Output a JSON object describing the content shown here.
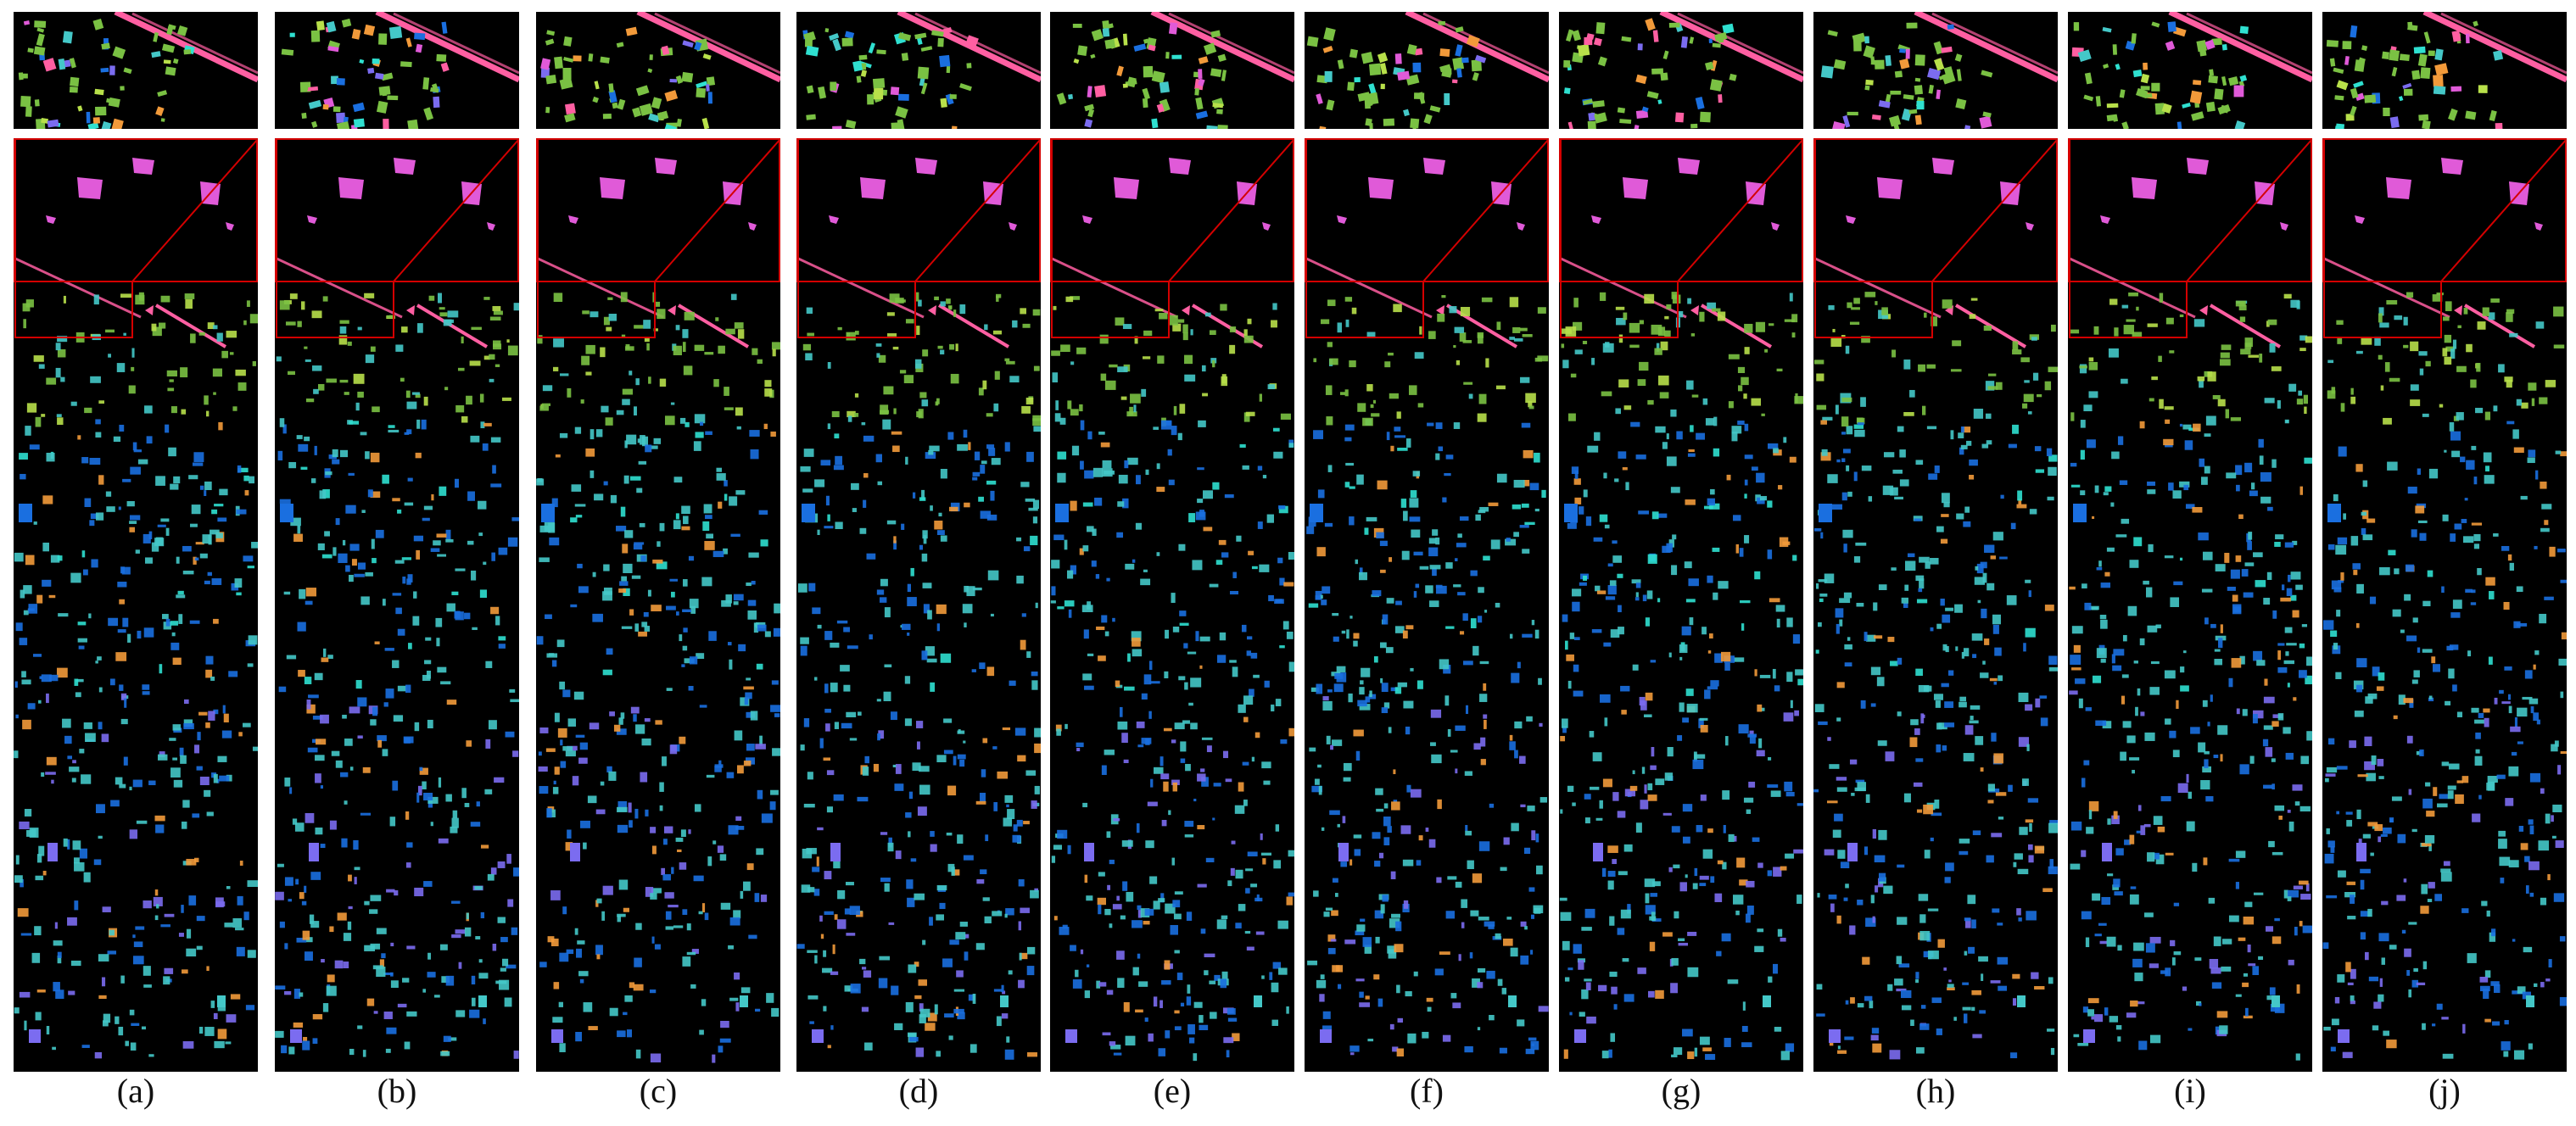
{
  "figure": {
    "panels": [
      {
        "label": "(a)"
      },
      {
        "label": "(b)"
      },
      {
        "label": "(c)"
      },
      {
        "label": "(d)"
      },
      {
        "label": "(e)"
      },
      {
        "label": "(f)"
      },
      {
        "label": "(g)"
      },
      {
        "label": "(h)"
      },
      {
        "label": "(i)"
      },
      {
        "label": "(j)"
      }
    ],
    "colors": {
      "background": "#000000",
      "zoom_box": "#d40000",
      "divider": "#ffffff",
      "classes": [
        "#ff5fa2",
        "#e05ad8",
        "#7ac143",
        "#44c8c8",
        "#1a6fe0",
        "#7b6cf0",
        "#f29a3a",
        "#2fe0d0",
        "#b8e04a"
      ]
    }
  }
}
